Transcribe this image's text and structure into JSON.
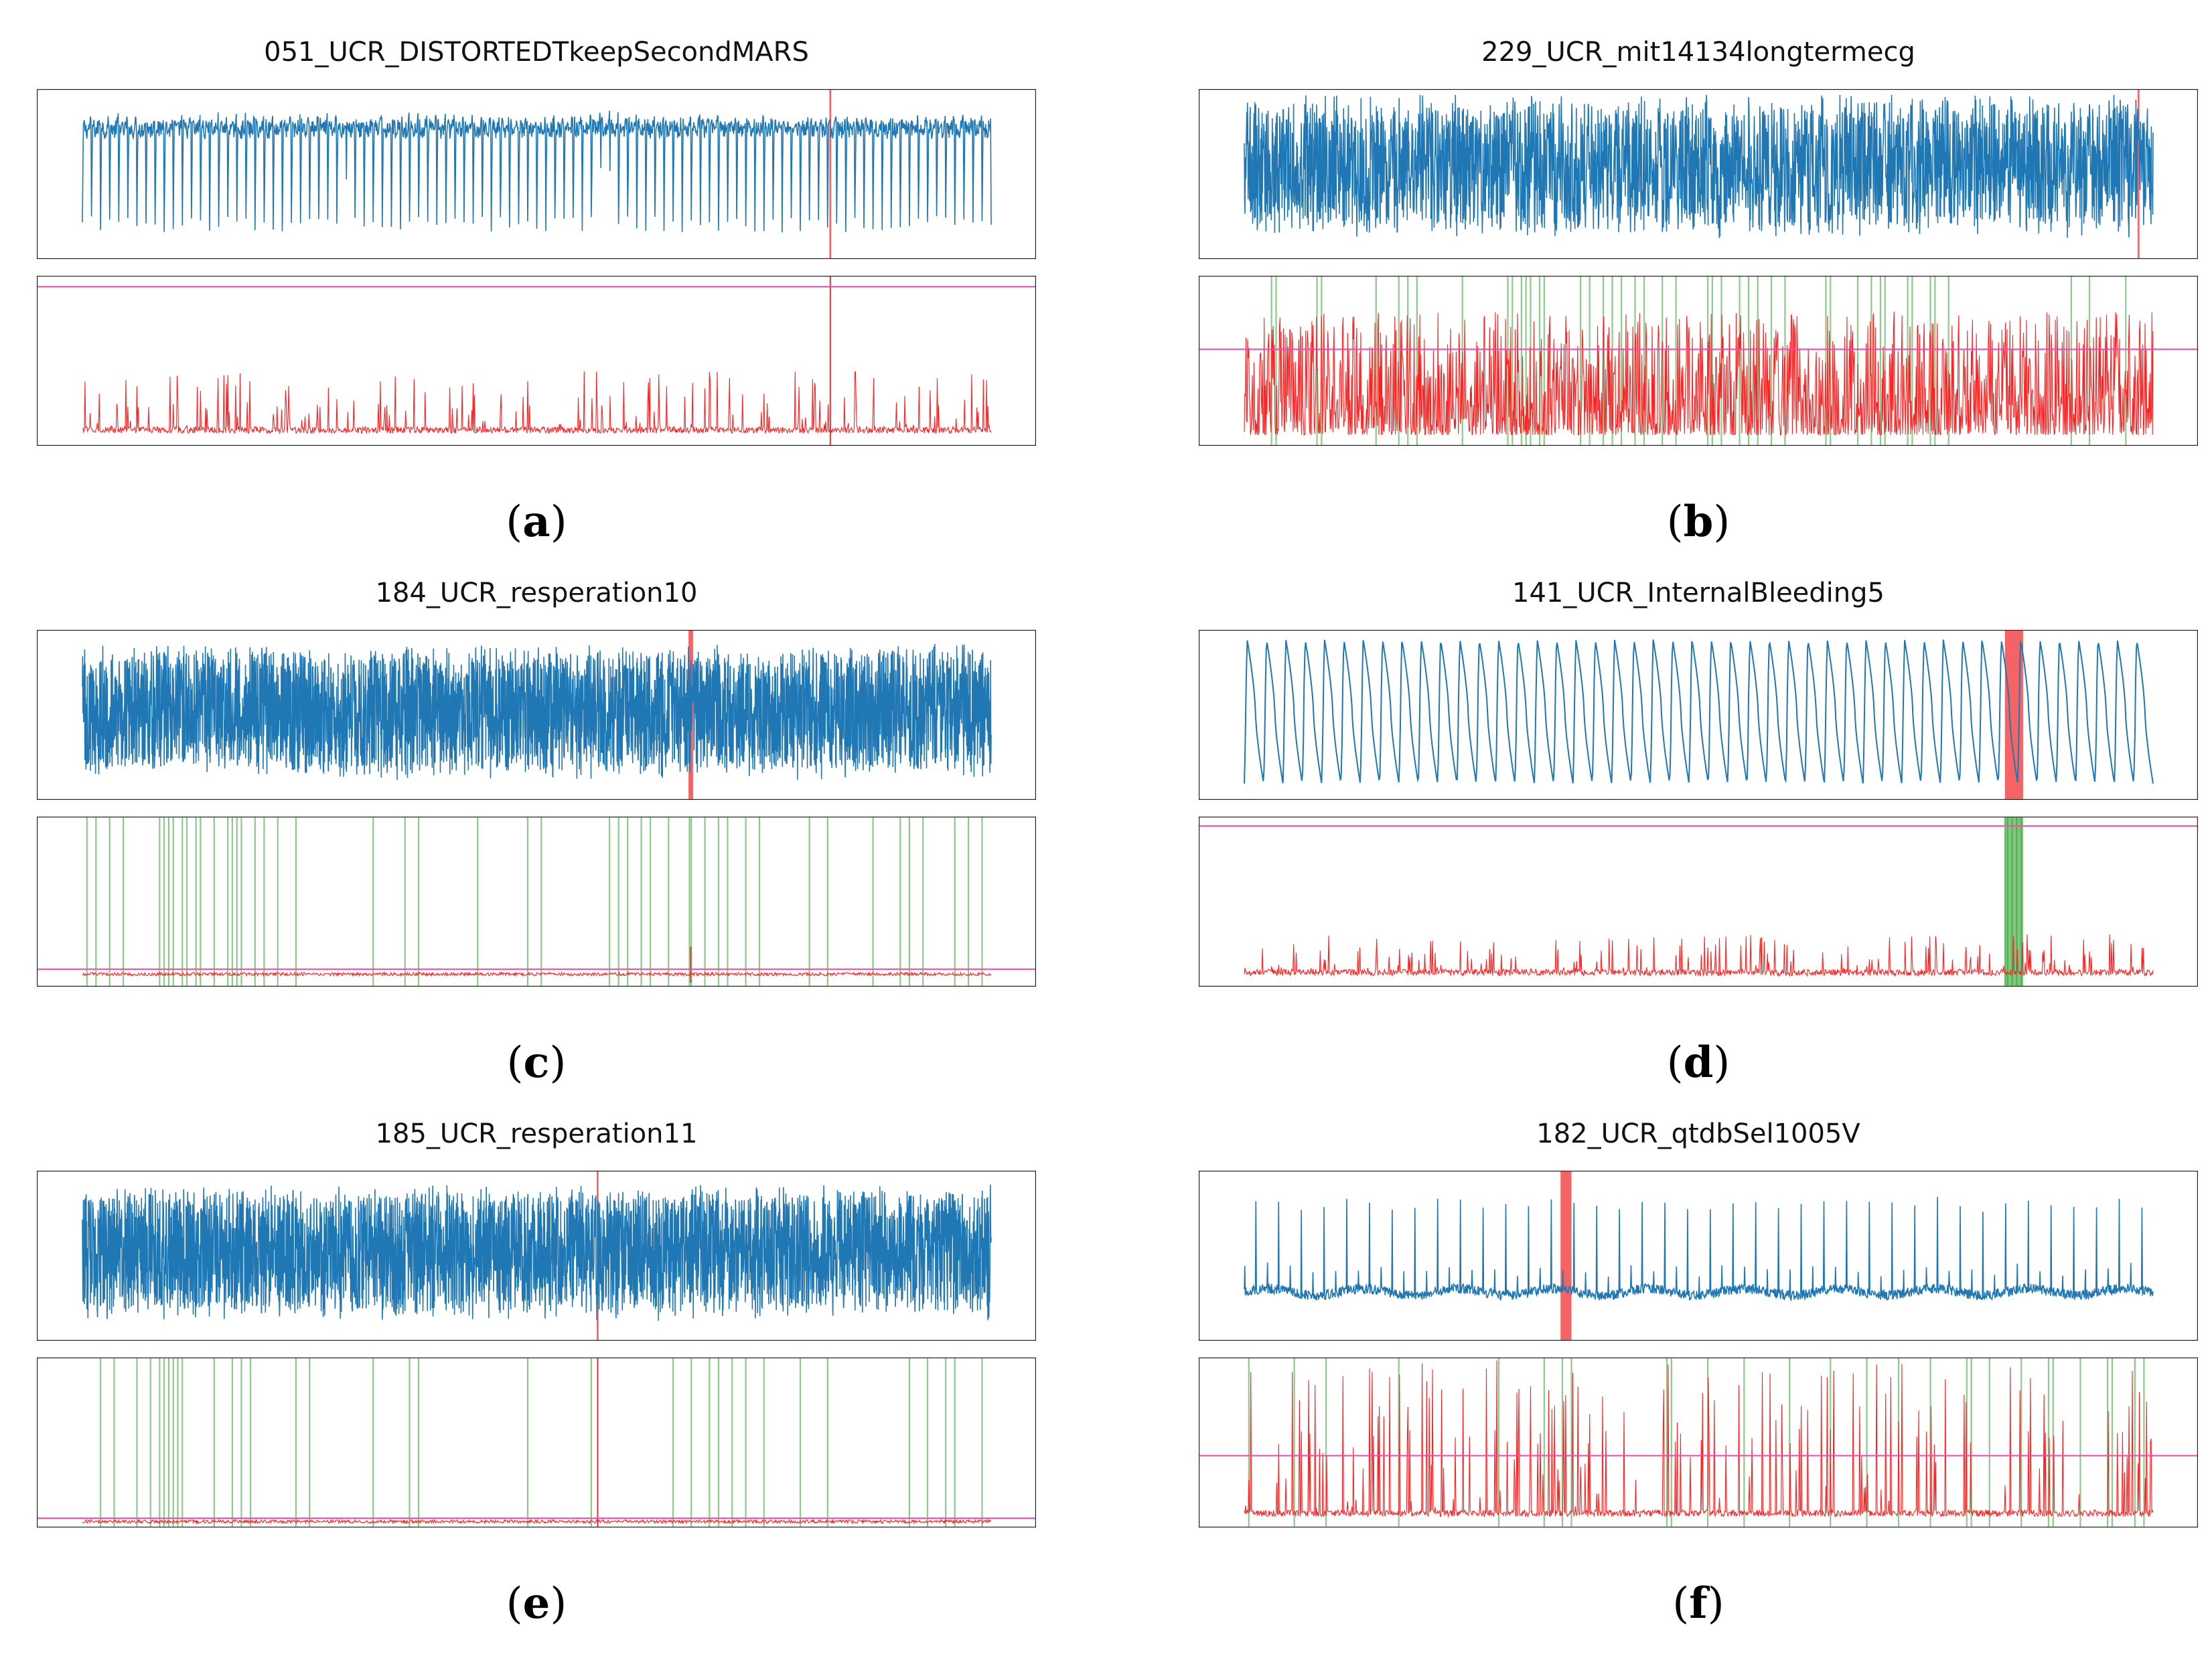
{
  "colors": {
    "signal": "#1f77b4",
    "score": "#ff2020",
    "threshold": "#ff44aa",
    "anomaly": "#f03030",
    "detections": "#2ca02c"
  },
  "panels": [
    {
      "title": "051_UCR_DISTORTEDTkeepSecondMARS",
      "caption_open": "(",
      "caption_letter": "a",
      "caption_close": ")"
    },
    {
      "title": "229_UCR_mit14134longtermecg",
      "caption_open": "(",
      "caption_letter": "b",
      "caption_close": ")"
    },
    {
      "title": "184_UCR_resperation10",
      "caption_open": "(",
      "caption_letter": "c",
      "caption_close": ")"
    },
    {
      "title": "141_UCR_InternalBleeding5",
      "caption_open": "(",
      "caption_letter": "d",
      "caption_close": ")"
    },
    {
      "title": "185_UCR_resperation11",
      "caption_open": "(",
      "caption_letter": "e",
      "caption_close": ")"
    },
    {
      "title": "182_UCR_qtdbSel1005V",
      "caption_open": "(",
      "caption_letter": "f",
      "caption_close": ")"
    }
  ],
  "chart_data": [
    {
      "type": "line",
      "title": "051_UCR_DISTORTEDTkeepSecondMARS",
      "signal": {
        "pattern": "periodic",
        "cycles": 100,
        "density": "medium",
        "amplitude": 0.42,
        "offset": 0.55,
        "ylim": [
          0,
          1
        ]
      },
      "anomaly_regions": [
        [
          0.822,
          0.824
        ]
      ],
      "score": {
        "threshold": 0.95,
        "baseline": 0.06,
        "peak_max": 0.38,
        "spikes": "periodic"
      },
      "detections": [],
      "xlim": [
        0,
        1
      ]
    },
    {
      "type": "line",
      "title": "229_UCR_mit14134longtermecg",
      "signal": {
        "pattern": "dense",
        "density": "high",
        "amplitude": 0.45,
        "offset": 0.55,
        "ylim": [
          0,
          1
        ]
      },
      "anomaly_regions": [
        [
          0.983,
          0.985
        ]
      ],
      "score": {
        "threshold": 0.57,
        "baseline": 0.05,
        "peak_max": 0.75,
        "spikes": "dense"
      },
      "detections": [
        0.03,
        0.035,
        0.08,
        0.085,
        0.145,
        0.17,
        0.18,
        0.19,
        0.24,
        0.29,
        0.295,
        0.305,
        0.31,
        0.315,
        0.325,
        0.33,
        0.37,
        0.38,
        0.395,
        0.405,
        0.415,
        0.43,
        0.44,
        0.46,
        0.475,
        0.51,
        0.515,
        0.525,
        0.545,
        0.555,
        0.565,
        0.58,
        0.595,
        0.64,
        0.645,
        0.675,
        0.69,
        0.7,
        0.705,
        0.73,
        0.735,
        0.755,
        0.76,
        0.775,
        0.91,
        0.93,
        0.97
      ],
      "xlim": [
        0,
        1
      ]
    },
    {
      "type": "line",
      "title": "184_UCR_resperation10",
      "signal": {
        "pattern": "block",
        "density": "very-high",
        "amplitude": 0.42,
        "offset": 0.52,
        "ylim": [
          0,
          1
        ]
      },
      "anomaly_regions": [
        [
          0.667,
          0.672
        ]
      ],
      "score": {
        "threshold": 0.09,
        "baseline": 0.06,
        "peak_max": 0.2,
        "spikes": "flat"
      },
      "detections": [
        0.005,
        0.015,
        0.03,
        0.045,
        0.085,
        0.09,
        0.095,
        0.1,
        0.11,
        0.115,
        0.125,
        0.13,
        0.145,
        0.16,
        0.165,
        0.17,
        0.175,
        0.19,
        0.2,
        0.215,
        0.235,
        0.32,
        0.355,
        0.37,
        0.435,
        0.49,
        0.505,
        0.58,
        0.59,
        0.6,
        0.615,
        0.625,
        0.645,
        0.668,
        0.67,
        0.685,
        0.7,
        0.71,
        0.73,
        0.745,
        0.8,
        0.82,
        0.87,
        0.9,
        0.91,
        0.925,
        0.96,
        0.975,
        0.99
      ],
      "xlim": [
        0,
        1
      ]
    },
    {
      "type": "line",
      "title": "141_UCR_InternalBleeding5",
      "signal": {
        "pattern": "sawtooth",
        "cycles": 47,
        "density": "low",
        "amplitude": 0.46,
        "offset": 0.52,
        "ylim": [
          0,
          1
        ]
      },
      "anomaly_regions": [
        [
          0.837,
          0.857
        ]
      ],
      "score": {
        "threshold": 0.96,
        "baseline": 0.05,
        "peak_max": 0.25,
        "spikes": "periodic"
      },
      "detections": [
        0.837,
        0.84,
        0.845,
        0.85,
        0.855
      ],
      "xlim": [
        0,
        1
      ]
    },
    {
      "type": "line",
      "title": "185_UCR_resperation11",
      "signal": {
        "pattern": "block",
        "density": "very-high",
        "amplitude": 0.42,
        "offset": 0.52,
        "ylim": [
          0,
          1
        ]
      },
      "anomaly_regions": [
        [
          0.566,
          0.568
        ]
      ],
      "score": {
        "threshold": 0.04,
        "baseline": 0.02,
        "peak_max": 0.12,
        "spikes": "flat"
      },
      "detections": [
        0.02,
        0.035,
        0.06,
        0.075,
        0.085,
        0.09,
        0.095,
        0.1,
        0.105,
        0.11,
        0.145,
        0.165,
        0.175,
        0.185,
        0.235,
        0.25,
        0.32,
        0.36,
        0.37,
        0.49,
        0.56,
        0.65,
        0.67,
        0.69,
        0.7,
        0.715,
        0.73,
        0.75,
        0.79,
        0.82,
        0.91,
        0.93,
        0.95,
        0.96,
        0.99
      ],
      "xlim": [
        0,
        1
      ]
    },
    {
      "type": "line",
      "title": "182_UCR_qtdbSel1005V",
      "signal": {
        "pattern": "ecg",
        "cycles": 80,
        "density": "medium",
        "amplitude": 0.4,
        "offset": 0.32,
        "ylim": [
          0,
          1
        ]
      },
      "anomaly_regions": [
        [
          0.348,
          0.36
        ]
      ],
      "score": {
        "threshold": 0.42,
        "baseline": 0.05,
        "peak_max": 0.95,
        "spikes": "periodic"
      },
      "detections": [
        0.005,
        0.055,
        0.09,
        0.17,
        0.28,
        0.33,
        0.35,
        0.36,
        0.465,
        0.47,
        0.51,
        0.55,
        0.6,
        0.645,
        0.685,
        0.72,
        0.755,
        0.795,
        0.8,
        0.82,
        0.855,
        0.885,
        0.89,
        0.92,
        0.95,
        0.955,
        0.98,
        0.99
      ],
      "xlim": [
        0,
        1
      ]
    }
  ]
}
